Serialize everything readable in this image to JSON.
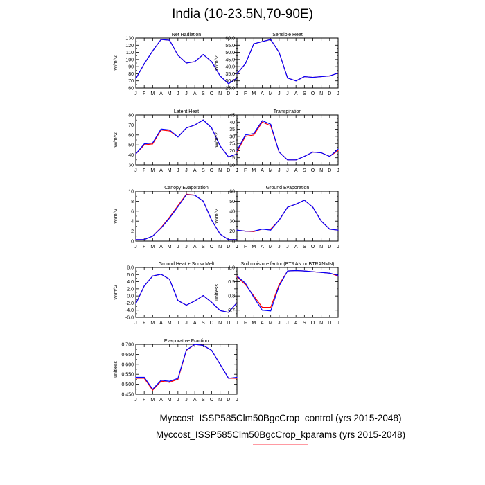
{
  "title": "India (10-23.5N,70-90E)",
  "legend": [
    {
      "label": "Myccost_ISSP585Clm50BgcCrop_control (yrs 2015-2048)",
      "color": "#ff0000"
    },
    {
      "label": "Myccost_ISSP585Clm50BgcCrop_kparams (yrs 2015-2048)",
      "color": "#0000ff"
    }
  ],
  "chart_data": [
    {
      "type": "line",
      "title": "Net Radiation",
      "ylabel": "W/m^2",
      "categories": [
        "J",
        "F",
        "M",
        "A",
        "M",
        "J",
        "J",
        "A",
        "S",
        "O",
        "N",
        "D",
        "J"
      ],
      "ylim": [
        60,
        130
      ],
      "yticks": [
        "60",
        "70",
        "80",
        "90",
        "100",
        "110",
        "120",
        "130"
      ],
      "yticks_values": [
        60,
        70,
        80,
        90,
        100,
        110,
        120,
        130
      ],
      "series": [
        {
          "name": "control",
          "color": "#ff0000",
          "values": [
            73,
            94,
            112,
            128,
            127,
            106,
            95,
            97,
            107,
            97,
            77,
            66,
            74
          ]
        },
        {
          "name": "kparams",
          "color": "#0000ff",
          "values": [
            73,
            94,
            112,
            128,
            127,
            106,
            95,
            97,
            107,
            97,
            77,
            66,
            74
          ]
        }
      ]
    },
    {
      "type": "line",
      "title": "Sensible Heat",
      "ylabel": "W/m^2",
      "categories": [
        "J",
        "F",
        "M",
        "A",
        "M",
        "J",
        "J",
        "A",
        "S",
        "O",
        "N",
        "D",
        "J"
      ],
      "ylim": [
        25,
        60
      ],
      "yticks": [
        "25.0",
        "30.0",
        "35.0",
        "40.0",
        "45.0",
        "50.0",
        "55.0",
        "60.0"
      ],
      "yticks_values": [
        25,
        30,
        35,
        40,
        45,
        50,
        55,
        60
      ],
      "series": [
        {
          "name": "control",
          "color": "#ff0000",
          "values": [
            35,
            42,
            56,
            57.5,
            59,
            50,
            32,
            30,
            33,
            32.5,
            33,
            33.5,
            35.5
          ]
        },
        {
          "name": "kparams",
          "color": "#0000ff",
          "values": [
            35,
            42,
            56,
            57.5,
            59,
            50,
            32,
            30,
            33,
            32.5,
            33,
            33.5,
            35.5
          ]
        }
      ]
    },
    {
      "type": "line",
      "title": "Latent Heat",
      "ylabel": "W/m^2",
      "categories": [
        "J",
        "F",
        "M",
        "A",
        "M",
        "J",
        "J",
        "A",
        "S",
        "O",
        "N",
        "D",
        "J"
      ],
      "ylim": [
        30,
        80
      ],
      "yticks": [
        "30",
        "40",
        "50",
        "60",
        "70",
        "80"
      ],
      "yticks_values": [
        30,
        40,
        50,
        60,
        70,
        80
      ],
      "series": [
        {
          "name": "control",
          "color": "#ff0000",
          "values": [
            41,
            50,
            51,
            65,
            64,
            58,
            67,
            70,
            75,
            67,
            49,
            38,
            41
          ]
        },
        {
          "name": "kparams",
          "color": "#0000ff",
          "values": [
            41,
            51,
            52,
            66,
            65,
            58,
            67,
            70,
            75,
            67,
            49,
            38,
            41
          ]
        }
      ]
    },
    {
      "type": "line",
      "title": "Transpiration",
      "ylabel": "W/m^2",
      "categories": [
        "J",
        "F",
        "M",
        "A",
        "M",
        "J",
        "J",
        "A",
        "S",
        "O",
        "N",
        "D",
        "J"
      ],
      "ylim": [
        10,
        45
      ],
      "yticks": [
        "10",
        "15",
        "20",
        "25",
        "30",
        "35",
        "40",
        "45"
      ],
      "yticks_values": [
        10,
        15,
        20,
        25,
        30,
        35,
        40,
        45
      ],
      "series": [
        {
          "name": "control",
          "color": "#ff0000",
          "values": [
            19,
            30,
            31,
            40,
            37.5,
            19,
            13.5,
            13.5,
            16,
            19,
            18.5,
            16,
            20
          ]
        },
        {
          "name": "kparams",
          "color": "#0000ff",
          "values": [
            20,
            31,
            32,
            41,
            38.5,
            19,
            13.5,
            13.5,
            16,
            19,
            18.5,
            16,
            21
          ]
        }
      ]
    },
    {
      "type": "line",
      "title": "Canopy Evaporation",
      "ylabel": "W/m^2",
      "categories": [
        "J",
        "F",
        "M",
        "A",
        "M",
        "J",
        "J",
        "A",
        "S",
        "O",
        "N",
        "D",
        "J"
      ],
      "ylim": [
        0,
        10
      ],
      "yticks": [
        "0",
        "2",
        "4",
        "6",
        "8",
        "10"
      ],
      "yticks_values": [
        0,
        2,
        4,
        6,
        8,
        10
      ],
      "series": [
        {
          "name": "control",
          "color": "#ff0000",
          "values": [
            0.3,
            0.3,
            1.0,
            2.7,
            4.8,
            7.1,
            9.4,
            9.2,
            8.0,
            4.2,
            1.4,
            0.3,
            0.3
          ]
        },
        {
          "name": "kparams",
          "color": "#0000ff",
          "values": [
            0.3,
            0.3,
            1.0,
            2.6,
            4.6,
            6.9,
            9.3,
            9.2,
            8.0,
            4.2,
            1.4,
            0.3,
            0.3
          ]
        }
      ]
    },
    {
      "type": "line",
      "title": "Ground Evaporation",
      "ylabel": "W/m^2",
      "categories": [
        "J",
        "F",
        "M",
        "A",
        "M",
        "J",
        "J",
        "A",
        "S",
        "O",
        "N",
        "D",
        "J"
      ],
      "ylim": [
        10,
        60
      ],
      "yticks": [
        "10",
        "20",
        "30",
        "40",
        "50",
        "60"
      ],
      "yticks_values": [
        10,
        20,
        30,
        40,
        50,
        60
      ],
      "series": [
        {
          "name": "control",
          "color": "#ff0000",
          "values": [
            21,
            20,
            19.5,
            22,
            22,
            31,
            44,
            47,
            51,
            44,
            30,
            22,
            21
          ]
        },
        {
          "name": "kparams",
          "color": "#0000ff",
          "values": [
            21,
            20,
            20,
            22,
            21,
            31,
            44,
            47,
            51,
            44,
            30,
            22,
            21
          ]
        }
      ]
    },
    {
      "type": "line",
      "title": "Ground Heat + Snow Melt",
      "ylabel": "W/m^2",
      "categories": [
        "J",
        "F",
        "M",
        "A",
        "M",
        "J",
        "J",
        "A",
        "S",
        "O",
        "N",
        "D",
        "J"
      ],
      "ylim": [
        -6,
        8
      ],
      "yticks": [
        "-6.0",
        "-4.0",
        "-2.0",
        "0.0",
        "2.0",
        "4.0",
        "6.0",
        "8.0"
      ],
      "yticks_values": [
        -6,
        -4,
        -2,
        0,
        2,
        4,
        6,
        8
      ],
      "series": [
        {
          "name": "control",
          "color": "#ff0000",
          "values": [
            -2.2,
            2.8,
            5.6,
            6.1,
            4.7,
            -1.3,
            -2.6,
            -1.4,
            0.1,
            -1.8,
            -4.1,
            -4.6,
            -1.9
          ]
        },
        {
          "name": "kparams",
          "color": "#0000ff",
          "values": [
            -2.2,
            2.8,
            5.6,
            6.1,
            4.7,
            -1.3,
            -2.6,
            -1.4,
            0.1,
            -1.8,
            -4.1,
            -4.6,
            -1.9
          ]
        }
      ]
    },
    {
      "type": "line",
      "title": "Soil moisture factor (BTRAN or BTRANMN)",
      "ylabel": "unitless",
      "categories": [
        "J",
        "F",
        "M",
        "A",
        "M",
        "J",
        "J",
        "A",
        "S",
        "O",
        "N",
        "D",
        "J"
      ],
      "ylim": [
        0.65,
        1.0
      ],
      "yticks": [
        "0.7",
        "0.8",
        "0.9",
        "1.0"
      ],
      "yticks_values": [
        0.7,
        0.8,
        0.9,
        1.0
      ],
      "series": [
        {
          "name": "control",
          "color": "#ff0000",
          "values": [
            0.935,
            0.88,
            0.8,
            0.72,
            0.72,
            0.88,
            0.975,
            0.978,
            0.975,
            0.97,
            0.965,
            0.96,
            0.94
          ]
        },
        {
          "name": "kparams",
          "color": "#0000ff",
          "values": [
            0.94,
            0.89,
            0.79,
            0.7,
            0.695,
            0.87,
            0.975,
            0.978,
            0.975,
            0.97,
            0.965,
            0.96,
            0.945
          ]
        }
      ]
    },
    {
      "type": "line",
      "title": "Evaporative Fraction",
      "ylabel": "unitless",
      "categories": [
        "J",
        "F",
        "M",
        "A",
        "M",
        "J",
        "J",
        "A",
        "S",
        "O",
        "N",
        "D",
        "J"
      ],
      "ylim": [
        0.45,
        0.7
      ],
      "yticks": [
        "0.450",
        "0.500",
        "0.550",
        "0.600",
        "0.650",
        "0.700"
      ],
      "yticks_values": [
        0.45,
        0.5,
        0.55,
        0.6,
        0.65,
        0.7
      ],
      "series": [
        {
          "name": "control",
          "color": "#ff0000",
          "values": [
            0.53,
            0.53,
            0.47,
            0.515,
            0.51,
            0.525,
            0.67,
            0.7,
            0.695,
            0.67,
            0.6,
            0.53,
            0.53
          ]
        },
        {
          "name": "kparams",
          "color": "#0000ff",
          "values": [
            0.535,
            0.535,
            0.475,
            0.52,
            0.515,
            0.53,
            0.672,
            0.7,
            0.695,
            0.67,
            0.6,
            0.53,
            0.535
          ]
        }
      ]
    }
  ]
}
